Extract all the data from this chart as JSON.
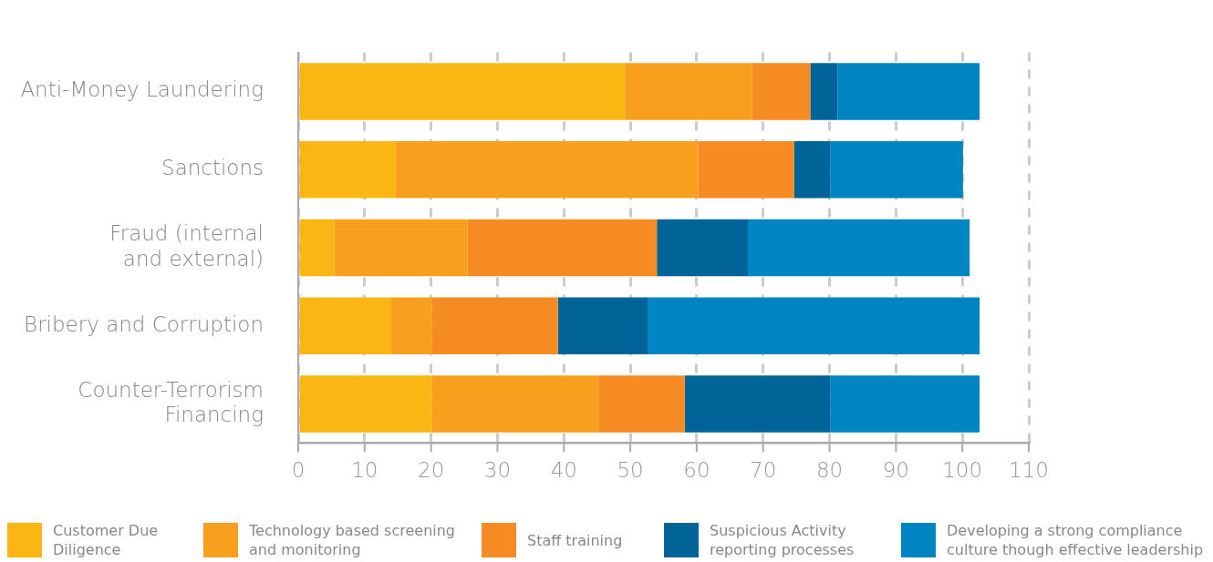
{
  "chart_data": {
    "type": "bar",
    "orientation": "horizontal",
    "stacked": true,
    "categories": [
      "Anti-Money Laundering",
      "Sanctions",
      "Fraud (internal and external)",
      "Bribery and Corruption",
      "Counter-Terrorism Financing"
    ],
    "series": [
      {
        "name": "Customer Due Diligence",
        "color": "#fbb614",
        "values": [
          49.2,
          14.6,
          5.4,
          14.0,
          20.1
        ]
      },
      {
        "name": "Technology based screening and monitoring",
        "color": "#f8a01e",
        "values": [
          19.1,
          45.6,
          20.1,
          6.1,
          25.1
        ]
      },
      {
        "name": "Staff training",
        "color": "#f68a23",
        "values": [
          8.8,
          14.5,
          28.5,
          19.0,
          13.0
        ]
      },
      {
        "name": "Suspicious Activity reporting processes",
        "color": "#006499",
        "values": [
          4.1,
          5.4,
          13.7,
          13.5,
          21.9
        ]
      },
      {
        "name": "Developing a strong compliance culture though effective leadership",
        "color": "#0085c3",
        "values": [
          21.4,
          20.0,
          33.4,
          50.0,
          22.5
        ]
      }
    ],
    "xlim": [
      0,
      110
    ],
    "xticks": [
      0,
      10,
      20,
      30,
      40,
      50,
      60,
      70,
      80,
      90,
      100,
      110
    ],
    "grid": "x",
    "legend": "bottom"
  }
}
